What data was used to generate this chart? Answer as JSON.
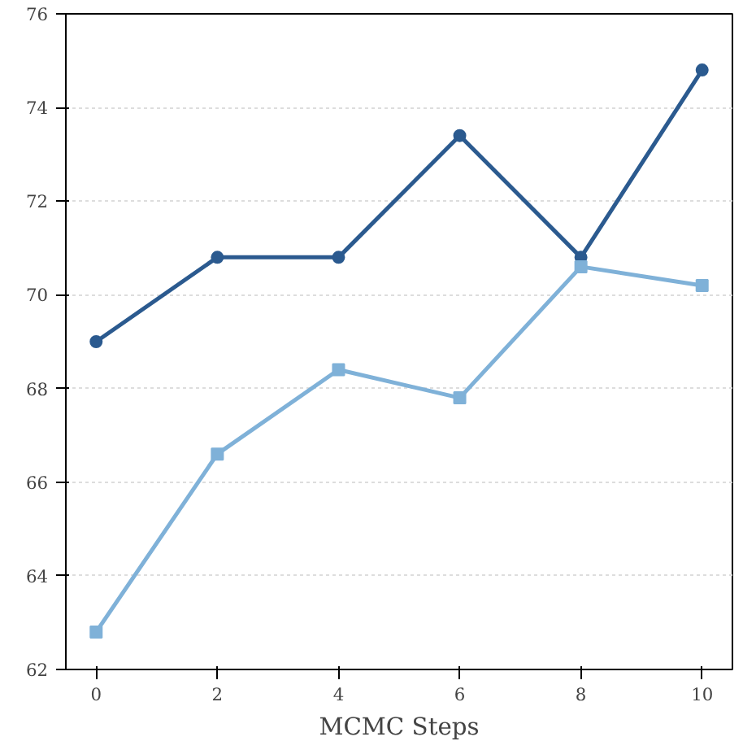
{
  "chart_data": {
    "type": "line",
    "xlabel": "MCMC Steps",
    "x": [
      0,
      2,
      4,
      6,
      8,
      10
    ],
    "series": [
      {
        "color": "#2b5a8f",
        "marker": "circle",
        "values": [
          69.0,
          70.8,
          70.8,
          73.4,
          70.8,
          74.8
        ]
      },
      {
        "color": "#7fb1d8",
        "marker": "square",
        "values": [
          62.8,
          66.6,
          68.4,
          67.8,
          70.6,
          70.2
        ]
      }
    ],
    "xlim": [
      -0.5,
      10.5
    ],
    "xticks": [
      0,
      2,
      4,
      6,
      8,
      10
    ],
    "ylim": [
      62,
      76
    ],
    "yticks": [
      62,
      64,
      66,
      68,
      70,
      72,
      74,
      76
    ],
    "grid": "y",
    "line_style": "solid"
  }
}
